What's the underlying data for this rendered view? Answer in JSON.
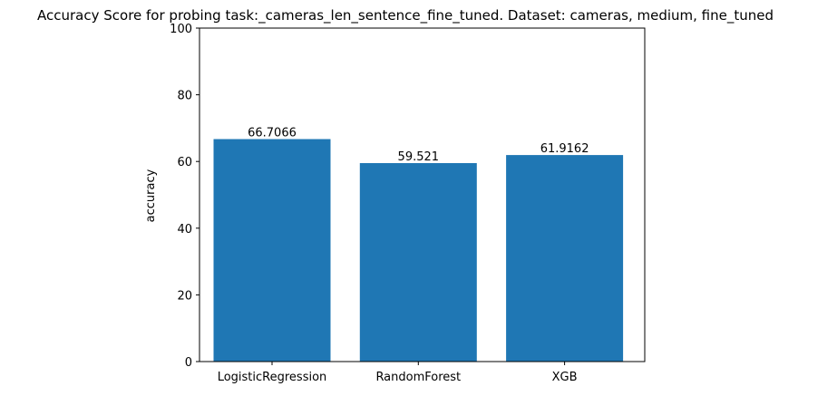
{
  "chart_data": {
    "type": "bar",
    "title": "Accuracy Score for probing task:_cameras_len_sentence_fine_tuned. Dataset: cameras, medium, fine_tuned",
    "xlabel": "",
    "ylabel": "accuracy",
    "categories": [
      "LogisticRegression",
      "RandomForest",
      "XGB"
    ],
    "values": [
      66.7066,
      59.521,
      61.9162
    ],
    "value_labels": [
      "66.7066",
      "59.521",
      "61.9162"
    ],
    "ylim": [
      0,
      100
    ],
    "yticks": [
      0,
      20,
      40,
      60,
      80,
      100
    ],
    "grid": false,
    "bar_color": "#1f77b4"
  }
}
